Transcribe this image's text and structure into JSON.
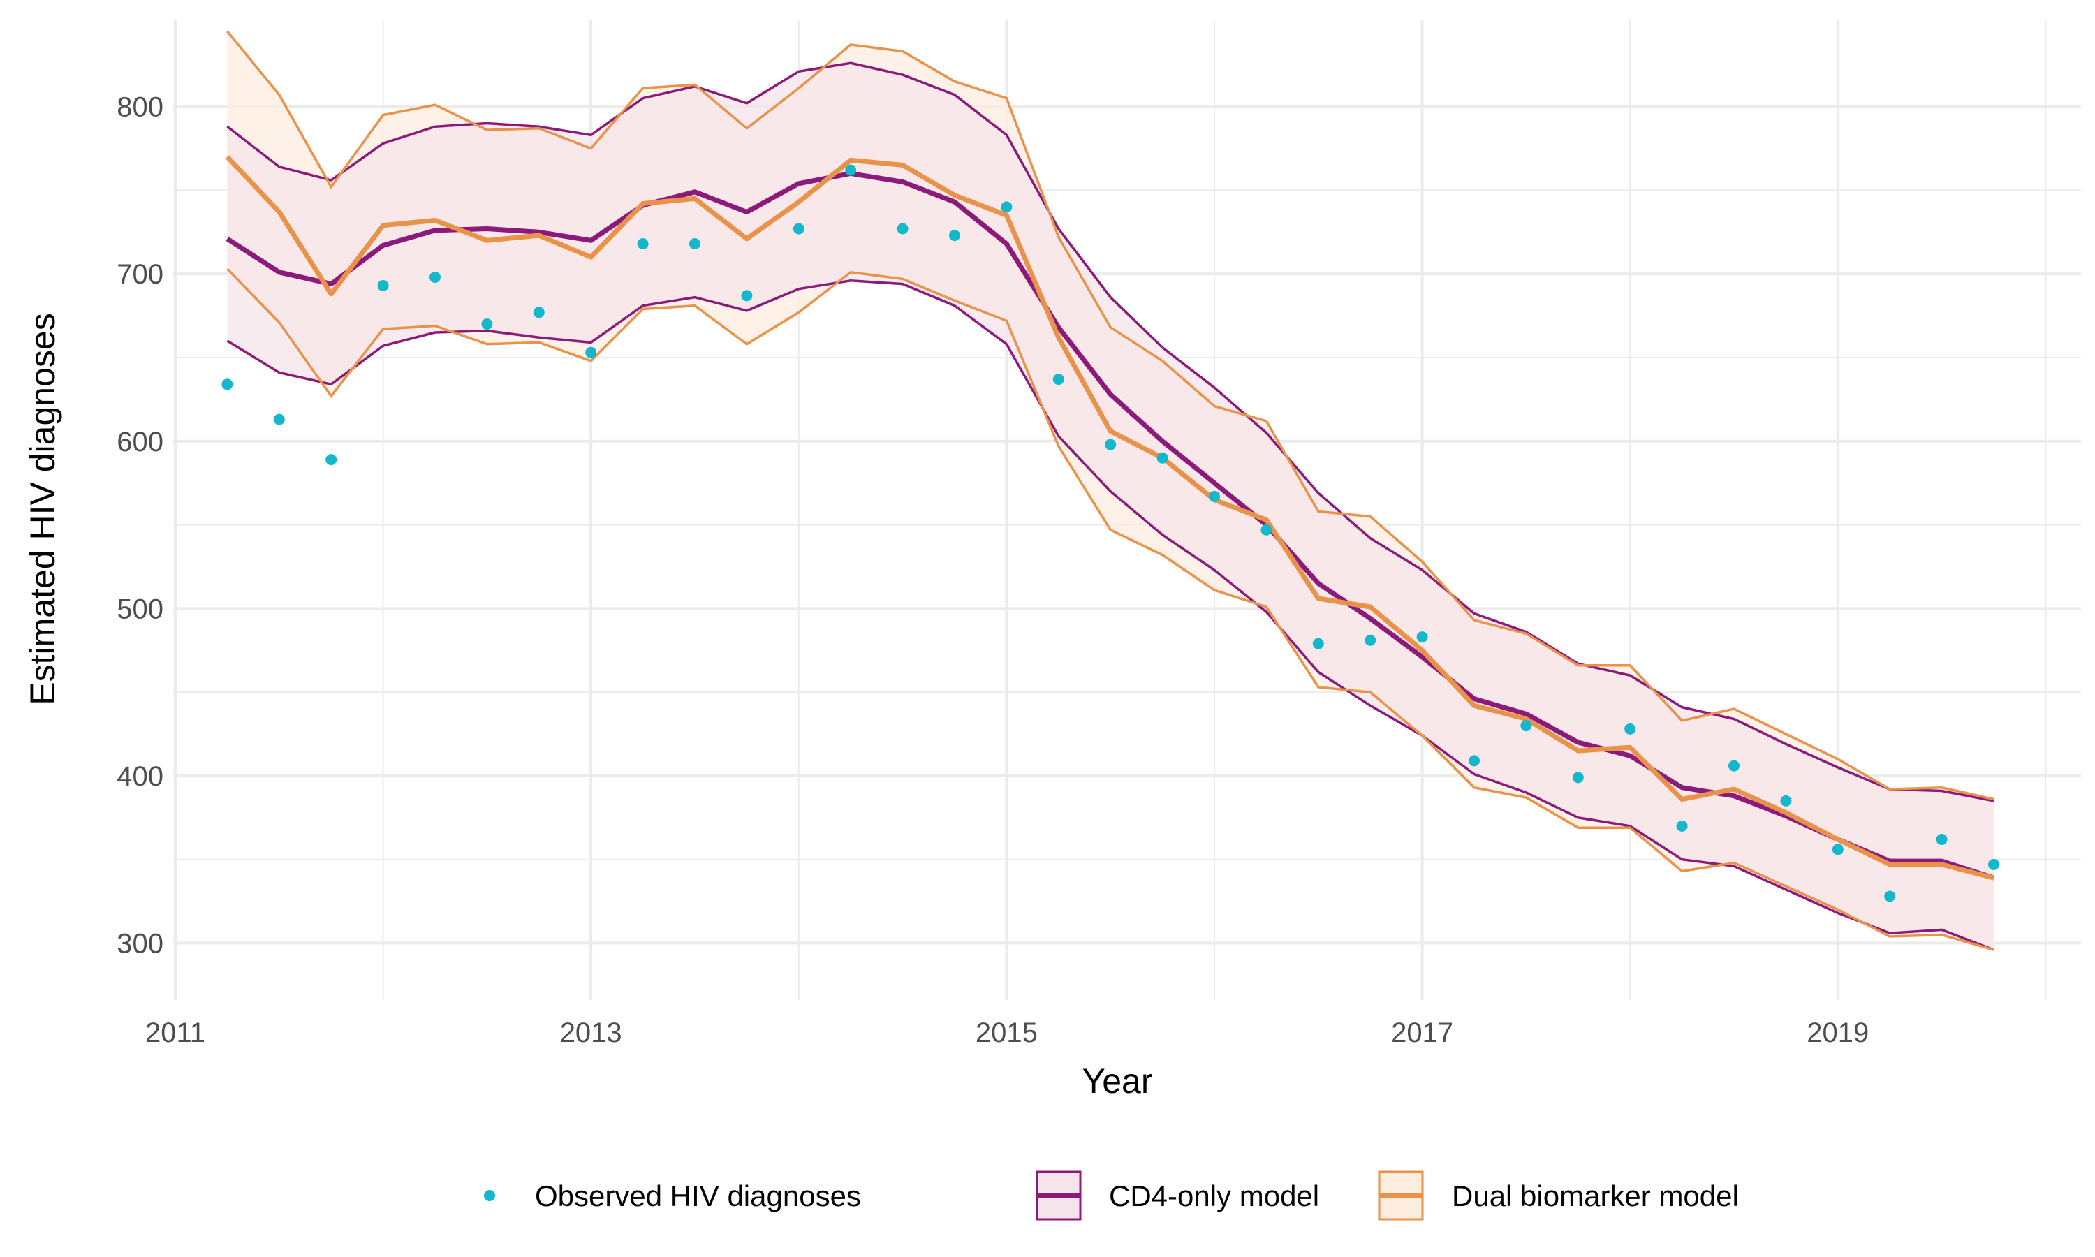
{
  "chart_data": {
    "type": "line",
    "xlabel": "Year",
    "ylabel": "Estimated HIV diagnoses",
    "xlim": [
      2010.99,
      2020.17
    ],
    "ylim": [
      266,
      852
    ],
    "x_ticks": [
      2011,
      2013,
      2015,
      2017,
      2019
    ],
    "x_tick_labels": [
      "2011",
      "2013",
      "2015",
      "2017",
      "2019"
    ],
    "x_minor_ticks": [
      2012,
      2014,
      2016,
      2018,
      2020
    ],
    "y_ticks": [
      300,
      400,
      500,
      600,
      700,
      800
    ],
    "y_tick_labels": [
      "300",
      "400",
      "500",
      "600",
      "700",
      "800"
    ],
    "y_minor_ticks": [
      350,
      450,
      550,
      650,
      750
    ],
    "grid": true,
    "legend_position": "bottom",
    "x": [
      2011.25,
      2011.5,
      2011.75,
      2012.0,
      2012.25,
      2012.5,
      2012.75,
      2013.0,
      2013.25,
      2013.5,
      2013.75,
      2014.0,
      2014.25,
      2014.5,
      2014.75,
      2015.0,
      2015.25,
      2015.5,
      2015.75,
      2016.0,
      2016.25,
      2016.5,
      2016.75,
      2017.0,
      2017.25,
      2017.5,
      2017.75,
      2018.0,
      2018.25,
      2018.5,
      2018.75,
      2019.0,
      2019.25,
      2019.5,
      2019.75
    ],
    "series": [
      {
        "name": "Observed HIV diagnoses",
        "kind": "points",
        "color": "#14B8CC",
        "values": [
          634,
          613,
          589,
          693,
          698,
          670,
          677,
          653,
          718,
          718,
          687,
          727,
          762,
          727,
          723,
          740,
          637,
          598,
          590,
          567,
          547,
          479,
          481,
          483,
          409,
          430,
          399,
          428,
          370,
          406,
          385,
          356,
          328,
          362,
          347
        ]
      },
      {
        "name": "CD4-only model",
        "kind": "line-ribbon",
        "color": "#8B1A7A",
        "fill": "#F5E4E9",
        "values": [
          721,
          701,
          694,
          717,
          726,
          727,
          725,
          720,
          741,
          749,
          737,
          754,
          760,
          755,
          743,
          718,
          668,
          628,
          600,
          575,
          550,
          515,
          494,
          471,
          446,
          437,
          420,
          412,
          393,
          388,
          376,
          362,
          349,
          349,
          339
        ],
        "lower": [
          660,
          641,
          634,
          657,
          665,
          666,
          662,
          659,
          681,
          686,
          678,
          691,
          696,
          694,
          681,
          658,
          603,
          570,
          544,
          523,
          498,
          462,
          442,
          424,
          401,
          390,
          375,
          370,
          350,
          346,
          332,
          318,
          306,
          308,
          296
        ],
        "upper": [
          788,
          764,
          756,
          778,
          788,
          790,
          788,
          783,
          805,
          812,
          802,
          821,
          826,
          819,
          807,
          783,
          727,
          686,
          656,
          632,
          605,
          569,
          542,
          523,
          497,
          486,
          467,
          460,
          441,
          434,
          419,
          405,
          392,
          391,
          385
        ]
      },
      {
        "name": "Dual biomarker model",
        "kind": "line-ribbon",
        "color": "#E8924A",
        "fill": "#FDEEE0",
        "values": [
          770,
          737,
          688,
          729,
          732,
          720,
          723,
          710,
          742,
          745,
          721,
          743,
          768,
          765,
          747,
          735,
          662,
          606,
          590,
          565,
          553,
          506,
          501,
          475,
          442,
          434,
          415,
          417,
          386,
          392,
          378,
          362,
          347,
          347,
          339
        ],
        "lower": [
          703,
          671,
          627,
          667,
          669,
          658,
          659,
          648,
          679,
          681,
          658,
          677,
          701,
          697,
          684,
          672,
          597,
          547,
          532,
          511,
          501,
          453,
          450,
          424,
          393,
          387,
          369,
          369,
          343,
          348,
          334,
          320,
          304,
          305,
          296
        ],
        "upper": [
          845,
          807,
          752,
          795,
          801,
          786,
          787,
          775,
          811,
          813,
          787,
          811,
          837,
          833,
          815,
          805,
          722,
          668,
          648,
          621,
          612,
          558,
          555,
          528,
          493,
          485,
          466,
          466,
          433,
          440,
          425,
          410,
          392,
          393,
          386
        ]
      }
    ]
  }
}
